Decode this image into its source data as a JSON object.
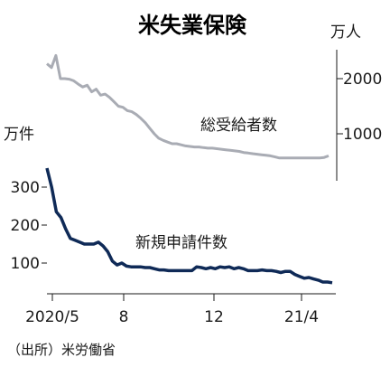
{
  "chart_data": {
    "type": "line",
    "title": "米失業保険",
    "source": "（出所）米労働省",
    "x_ticks": [
      "2020/5",
      "8",
      "12",
      "21/4"
    ],
    "left_axis": {
      "unit": "万件",
      "ticks": [
        100,
        200,
        300
      ],
      "ylim": [
        20,
        370
      ]
    },
    "right_axis": {
      "unit": "万人",
      "ticks": [
        1000,
        2000
      ],
      "ylim": [
        0,
        2400
      ]
    },
    "series": [
      {
        "name": "総受給者数",
        "axis": "right",
        "color": "#a9acb4",
        "values": [
          2270,
          2200,
          2420,
          2000,
          2000,
          1990,
          1960,
          1900,
          1850,
          1880,
          1760,
          1810,
          1700,
          1720,
          1660,
          1580,
          1500,
          1480,
          1420,
          1400,
          1350,
          1280,
          1200,
          1100,
          1000,
          920,
          880,
          850,
          820,
          820,
          800,
          780,
          770,
          760,
          760,
          750,
          740,
          740,
          730,
          720,
          710,
          700,
          690,
          680,
          660,
          650,
          640,
          630,
          620,
          610,
          600,
          580,
          560,
          560,
          560,
          560,
          560,
          560,
          560,
          560,
          560,
          560,
          570,
          600
        ]
      },
      {
        "name": "新規申請件数",
        "axis": "left",
        "color": "#0f2a57",
        "values": [
          350,
          300,
          235,
          220,
          190,
          165,
          160,
          155,
          150,
          150,
          150,
          155,
          145,
          130,
          105,
          95,
          100,
          92,
          90,
          90,
          90,
          88,
          88,
          85,
          82,
          82,
          80,
          80,
          80,
          80,
          80,
          80,
          90,
          88,
          85,
          88,
          85,
          90,
          88,
          90,
          85,
          88,
          85,
          80,
          80,
          80,
          82,
          80,
          80,
          78,
          75,
          78,
          78,
          70,
          65,
          60,
          62,
          58,
          55,
          50,
          50,
          48
        ]
      }
    ]
  }
}
